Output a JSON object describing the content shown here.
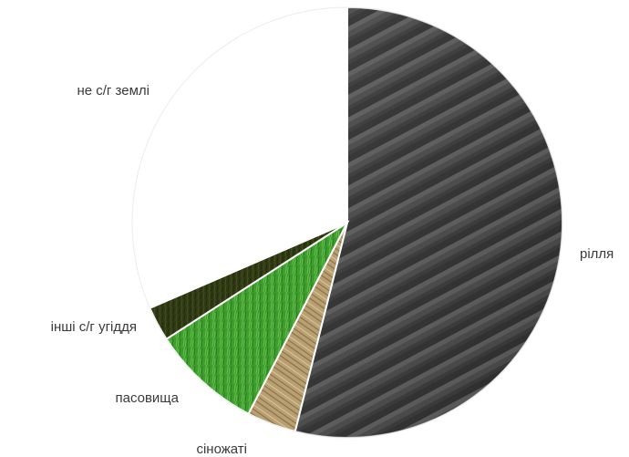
{
  "chart_data": {
    "type": "pie",
    "start_angle_deg": 0,
    "direction": "clockwise",
    "slices": [
      {
        "label": "рілля",
        "value": 53.9,
        "texture": "plowed-soil",
        "color": "#3f3f3f"
      },
      {
        "label": "сіножаті",
        "value": 3.7,
        "texture": "straw",
        "color": "#b59b68"
      },
      {
        "label": "пасовища",
        "value": 8.3,
        "texture": "grass",
        "color": "#3f9a2e"
      },
      {
        "label": "інші с/г угіддя",
        "value": 2.6,
        "texture": "dark-grass",
        "color": "#2f3a14"
      },
      {
        "label": "не с/г землі",
        "value": 31.5,
        "texture": "none",
        "color": "#ffffff"
      }
    ]
  }
}
